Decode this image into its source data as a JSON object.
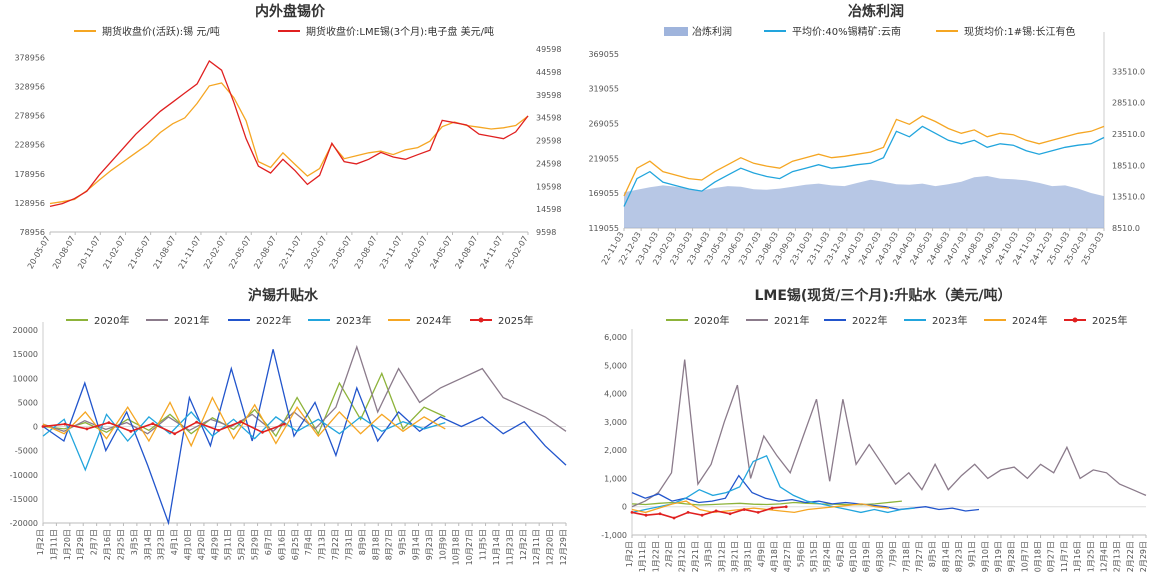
{
  "chart_data": [
    {
      "type": "line",
      "title": "内外盘锡价",
      "legend": "top",
      "series": [
        {
          "name": "期货收盘价(活跃):锡 元/吨",
          "axis": "left",
          "color": "#F5A623",
          "values": [
            128000,
            131000,
            135000,
            150000,
            168000,
            185000,
            200000,
            215000,
            230000,
            250000,
            265000,
            275000,
            300000,
            330000,
            335000,
            310000,
            270000,
            200000,
            190000,
            215000,
            195000,
            175000,
            188000,
            230000,
            205000,
            210000,
            215000,
            218000,
            212000,
            220000,
            224000,
            235000,
            260000,
            268000,
            262000,
            259000,
            256000,
            258000,
            262000,
            278000
          ]
        },
        {
          "name": "期货收盘价:LME锡(3个月):电子盘 美元/吨",
          "axis": "right",
          "color": "#E02020",
          "values": [
            15200,
            15800,
            16900,
            18500,
            22000,
            25000,
            28000,
            31000,
            33500,
            36000,
            38000,
            40000,
            42000,
            47000,
            45000,
            38000,
            30000,
            24000,
            22500,
            25500,
            23000,
            20000,
            22000,
            29000,
            25000,
            24500,
            25500,
            27000,
            26000,
            25500,
            26500,
            27500,
            34000,
            33500,
            33000,
            31000,
            30500,
            30000,
            31500,
            35000
          ]
        }
      ],
      "x_ticks": [
        "20-05-07",
        "20-08-07",
        "20-11-07",
        "21-02-07",
        "21-05-07",
        "21-08-07",
        "21-11-07",
        "22-02-07",
        "22-05-07",
        "22-08-07",
        "22-11-07",
        "23-02-07",
        "23-05-07",
        "23-08-07",
        "23-11-07",
        "24-02-07",
        "24-05-07",
        "24-08-07",
        "24-11-07",
        "25-02-07"
      ],
      "y_left_ticks": [
        "78956",
        "128956",
        "178956",
        "228956",
        "278956",
        "328956",
        "378956"
      ],
      "y_right_ticks": [
        "9598",
        "14598",
        "19598",
        "24598",
        "29598",
        "34598",
        "39598",
        "44598",
        "49598"
      ],
      "ylim_left": [
        78956,
        408956
      ],
      "ylim_right": [
        9598,
        51598
      ]
    },
    {
      "type": "area+line",
      "title": "冶炼利润",
      "legend": "top",
      "series": [
        {
          "name": "冶炼利润",
          "axis": "right",
          "kind": "area",
          "color": "#9FB4DC",
          "values": [
            14200,
            14600,
            15000,
            15300,
            15100,
            14800,
            14500,
            14900,
            15200,
            15100,
            14700,
            14600,
            14800,
            15100,
            15400,
            15600,
            15300,
            15200,
            15700,
            16200,
            15900,
            15500,
            15400,
            15600,
            15200,
            15500,
            15900,
            16600,
            16800,
            16400,
            16300,
            16100,
            15700,
            15200,
            15300,
            14800,
            14100,
            13600
          ]
        },
        {
          "name": "平均价:40%锡精矿:云南",
          "axis": "left",
          "color": "#22A5DD",
          "values": [
            150000,
            190000,
            200000,
            185000,
            180000,
            175000,
            172000,
            185000,
            195000,
            205000,
            198000,
            193000,
            190000,
            200000,
            205000,
            210000,
            205000,
            207000,
            210000,
            212000,
            220000,
            258000,
            250000,
            265000,
            255000,
            245000,
            240000,
            245000,
            235000,
            240000,
            238000,
            230000,
            225000,
            230000,
            235000,
            238000,
            240000,
            249000
          ]
        },
        {
          "name": "现货均价:1#锡:长江有色",
          "axis": "left",
          "color": "#F5A623",
          "values": [
            165000,
            205000,
            215000,
            200000,
            195000,
            190000,
            188000,
            200000,
            210000,
            220000,
            212000,
            208000,
            205000,
            215000,
            220000,
            225000,
            220000,
            222000,
            225000,
            228000,
            235000,
            275000,
            268000,
            280000,
            272000,
            262000,
            255000,
            260000,
            250000,
            255000,
            253000,
            245000,
            240000,
            245000,
            250000,
            255000,
            258000,
            265000
          ]
        }
      ],
      "x_ticks": [
        "22-11-03",
        "22-12-03",
        "23-01-03",
        "23-02-03",
        "23-03-03",
        "23-04-03",
        "23-05-03",
        "23-06-03",
        "23-07-03",
        "23-08-03",
        "23-09-03",
        "23-10-03",
        "23-11-03",
        "23-12-03",
        "24-01-03",
        "24-02-03",
        "24-03-03",
        "24-04-03",
        "24-05-03",
        "24-06-03",
        "24-07-03",
        "24-08-03",
        "24-09-03",
        "24-10-03",
        "24-11-03",
        "24-12-03",
        "25-01-03",
        "25-02-03",
        "25-03-03"
      ],
      "y_left_ticks": [
        "119055",
        "169055",
        "219055",
        "269055",
        "319055",
        "369055"
      ],
      "y_right_ticks": [
        "8510.0",
        "13510.0",
        "18510.0",
        "23510.0",
        "28510.0",
        "33510.0"
      ],
      "ylim_left": [
        119055,
        389055
      ],
      "ylim_right": [
        8510,
        38510
      ]
    },
    {
      "type": "line",
      "title": "沪锡升贴水",
      "legend": "top",
      "series": [
        {
          "name": "2020年",
          "color": "#8DB33A",
          "values": [
            0,
            -500,
            800,
            -1200,
            1500,
            -800,
            2500,
            -1500,
            1800,
            -600,
            3500,
            -2000,
            6000,
            -1500,
            9000,
            1500,
            11000,
            -500,
            4000,
            2000
          ]
        },
        {
          "name": "2021年",
          "color": "#8B7B8B",
          "values": [
            500,
            -1000,
            1200,
            -600,
            800,
            -1500,
            2000,
            -800,
            1500,
            0,
            2500,
            -1000,
            3000,
            -500,
            4000,
            16500,
            3000,
            12000,
            5000,
            8000,
            10000,
            12000,
            6000,
            4000,
            2000,
            -1000
          ]
        },
        {
          "name": "2022年",
          "color": "#2255CC",
          "values": [
            0,
            -3000,
            9000,
            -5000,
            3000,
            -8000,
            -20000,
            6000,
            -4000,
            12000,
            -3000,
            16000,
            -2000,
            5000,
            -6000,
            8000,
            -3000,
            3000,
            -1000,
            2000,
            0,
            2000,
            -1500,
            1000,
            -4000,
            -8000
          ]
        },
        {
          "name": "2023年",
          "color": "#22A5DD",
          "values": [
            -2000,
            1500,
            -9000,
            2500,
            -3000,
            2000,
            -1500,
            3000,
            -2000,
            1500,
            -2500,
            2000,
            -1000,
            1500,
            -1500,
            2000,
            -1000,
            1000,
            -500,
            800
          ]
        },
        {
          "name": "2024年",
          "color": "#F5A623",
          "values": [
            500,
            -1500,
            3000,
            -2500,
            4000,
            -3000,
            5000,
            -4000,
            6000,
            -2500,
            4500,
            -3500,
            4000,
            -2000,
            3000,
            -1500,
            2500,
            -1000,
            2000,
            -500
          ]
        },
        {
          "name": "2025年",
          "color": "#E02020",
          "values": [
            0,
            500,
            -500,
            800,
            -1000,
            600,
            -1500,
            900,
            -800,
            1000,
            -1200,
            500
          ]
        }
      ],
      "x_ticks": [
        "1月2日",
        "1月11日",
        "1月20日",
        "1月29日",
        "2月7日",
        "2月16日",
        "2月25日",
        "3月5日",
        "3月14日",
        "3月23日",
        "4月1日",
        "4月10日",
        "4月20日",
        "4月29日",
        "5月11日",
        "5月20日",
        "5月29日",
        "6月7日",
        "6月16日",
        "6月25日",
        "7月4日",
        "7月13日",
        "7月22日",
        "7月31日",
        "8月9日",
        "8月18日",
        "8月27日",
        "9月5日",
        "9月14日",
        "9月23日",
        "10月9日",
        "10月18日",
        "10月27日",
        "11月5日",
        "11月14日",
        "11月23日",
        "12月2日",
        "12月11日",
        "12月20日",
        "12月29日"
      ],
      "y_ticks": [
        "-20000",
        "-15000",
        "-10000",
        "-5000",
        "0",
        "5000",
        "10000",
        "15000",
        "20000"
      ],
      "ylim": [
        -20000,
        20000
      ]
    },
    {
      "type": "line",
      "title": "LME锡(现货/三个月):升贴水（美元/吨）",
      "legend": "top",
      "series": [
        {
          "name": "2020年",
          "color": "#8DB33A",
          "values": [
            100,
            80,
            120,
            150,
            100,
            60,
            80,
            100,
            120,
            90,
            80,
            100,
            150,
            120,
            100,
            90,
            80,
            70,
            100,
            150,
            200
          ]
        },
        {
          "name": "2021年",
          "color": "#8B7B8B",
          "values": [
            0,
            200,
            500,
            1200,
            5200,
            800,
            1500,
            3000,
            4300,
            1000,
            2500,
            1800,
            1200,
            2500,
            3800,
            900,
            3800,
            1500,
            2200,
            1500,
            800,
            1200,
            600,
            1500,
            600,
            1100,
            1500,
            1000,
            1300,
            1400,
            1000,
            1500,
            1200,
            2100,
            1000,
            1300,
            1200,
            800,
            600,
            400
          ]
        },
        {
          "name": "2022年",
          "color": "#2255CC",
          "values": [
            500,
            300,
            450,
            200,
            300,
            150,
            200,
            300,
            1100,
            500,
            300,
            200,
            250,
            150,
            200,
            100,
            150,
            100,
            50,
            0,
            -100,
            -50,
            0,
            -100,
            -50,
            -150,
            -100
          ]
        },
        {
          "name": "2023年",
          "color": "#22A5DD",
          "values": [
            -200,
            -100,
            0,
            100,
            300,
            600,
            400,
            500,
            700,
            1600,
            1800,
            700,
            400,
            200,
            100,
            0,
            -100,
            -200,
            -100,
            -200,
            -100,
            -50
          ]
        },
        {
          "name": "2024年",
          "color": "#F5A623",
          "values": [
            -100,
            -200,
            -50,
            100,
            200,
            -100,
            -200,
            -150,
            -100,
            -50,
            -100,
            -150,
            -200,
            -100,
            -50,
            0,
            50,
            100,
            0,
            -50
          ]
        },
        {
          "name": "2025年",
          "color": "#E02020",
          "values": [
            -200,
            -300,
            -250,
            -400,
            -200,
            -300,
            -150,
            -250,
            -100,
            -200,
            -50,
            0
          ]
        }
      ],
      "x_ticks": [
        "1月2日",
        "1月11日",
        "1月22日",
        "2月2日",
        "2月12日",
        "2月21日",
        "3月3日",
        "3月12日",
        "3月21日",
        "3月31日",
        "4月9日",
        "4月18日",
        "4月27日",
        "5月6日",
        "5月15日",
        "5月24日",
        "6月2日",
        "6月10日",
        "6月19日",
        "6月30日",
        "7月9日",
        "7月18日",
        "7月27日",
        "8月5日",
        "8月14日",
        "8月23日",
        "9月1日",
        "9月10日",
        "9月19日",
        "9月28日",
        "10月7日",
        "10月18日",
        "10月27日",
        "11月7日",
        "11月16日",
        "11月25日",
        "12月4日",
        "12月13日",
        "12月22日",
        "12月29日"
      ],
      "y_ticks": [
        "-1,000",
        "0",
        "1,000",
        "2,000",
        "3,000",
        "4,000",
        "5,000",
        "6,000"
      ],
      "ylim": [
        -1000,
        6000
      ]
    }
  ]
}
